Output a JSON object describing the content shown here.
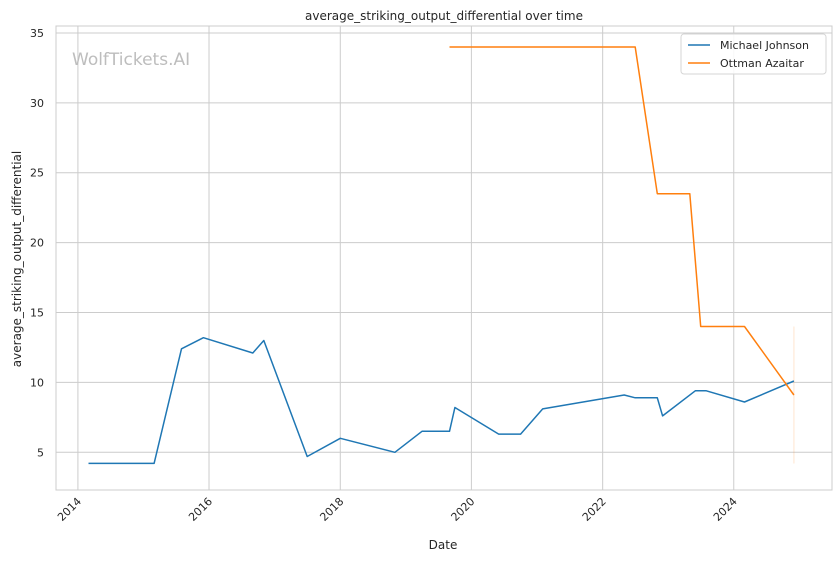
{
  "chart_data": {
    "type": "line",
    "title": "average_striking_output_differential over time",
    "xlabel": "Date",
    "ylabel": "average_striking_output_differential",
    "xlim": [
      "2013-09-01",
      "2025-07-01"
    ],
    "ylim": [
      2.3,
      35.5
    ],
    "x_ticks": [
      {
        "date": "2014-01-01",
        "label": "2014"
      },
      {
        "date": "2016-01-01",
        "label": "2016"
      },
      {
        "date": "2018-01-01",
        "label": "2018"
      },
      {
        "date": "2020-01-01",
        "label": "2020"
      },
      {
        "date": "2022-01-01",
        "label": "2022"
      },
      {
        "date": "2024-01-01",
        "label": "2024"
      }
    ],
    "y_ticks": [
      5,
      10,
      15,
      20,
      25,
      30,
      35
    ],
    "grid": true,
    "legend_position": "top-right",
    "watermark": "WolfTickets.AI",
    "series": [
      {
        "name": "Michael Johnson",
        "color": "#1f77b4",
        "points": [
          [
            "2014-03-01",
            4.2
          ],
          [
            "2015-03-01",
            4.2
          ],
          [
            "2015-08-01",
            12.4
          ],
          [
            "2015-12-01",
            13.2
          ],
          [
            "2016-09-01",
            12.1
          ],
          [
            "2016-11-01",
            13.0
          ],
          [
            "2017-07-01",
            4.7
          ],
          [
            "2018-01-01",
            6.0
          ],
          [
            "2018-11-01",
            5.0
          ],
          [
            "2019-04-01",
            6.5
          ],
          [
            "2019-09-01",
            6.5
          ],
          [
            "2019-10-01",
            8.2
          ],
          [
            "2020-06-01",
            6.3
          ],
          [
            "2020-10-01",
            6.3
          ],
          [
            "2021-02-01",
            8.1
          ],
          [
            "2022-05-01",
            9.1
          ],
          [
            "2022-07-01",
            8.9
          ],
          [
            "2022-11-01",
            8.9
          ],
          [
            "2022-12-01",
            7.6
          ],
          [
            "2023-06-01",
            9.4
          ],
          [
            "2023-08-01",
            9.4
          ],
          [
            "2024-03-01",
            8.6
          ],
          [
            "2024-12-01",
            10.1
          ]
        ]
      },
      {
        "name": "Ottman Azaitar",
        "color": "#ff7f0e",
        "points": [
          [
            "2019-09-01",
            34.0
          ],
          [
            "2022-07-01",
            34.0
          ],
          [
            "2022-11-01",
            23.5
          ],
          [
            "2023-05-01",
            23.5
          ],
          [
            "2023-07-01",
            14.0
          ],
          [
            "2024-03-01",
            14.0
          ],
          [
            "2024-12-01",
            9.1
          ]
        ]
      }
    ],
    "faint_band": {
      "date": "2024-12-01",
      "y_min": 4.2,
      "y_max": 14.0,
      "color": "#ff7f0e"
    }
  }
}
